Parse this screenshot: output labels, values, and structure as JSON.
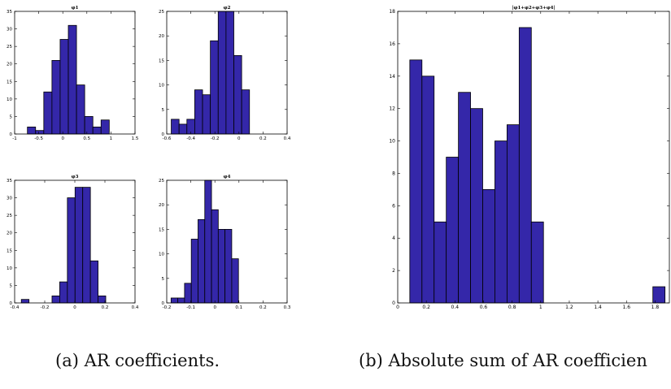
{
  "colors": {
    "bar_fill": "#3427a9",
    "bar_edge": "#000000",
    "axis": "#000000"
  },
  "chart_data": [
    {
      "type": "bar",
      "title": "φ1",
      "xlim": [
        -1,
        1.5
      ],
      "ylim": [
        0,
        35
      ],
      "xticks": [
        -1,
        -0.5,
        0,
        0.5,
        1,
        1.5
      ],
      "yticks": [
        0,
        5,
        10,
        15,
        20,
        25,
        30,
        35
      ],
      "x": [
        -0.65,
        -0.48,
        -0.31,
        -0.14,
        0.03,
        0.2,
        0.37,
        0.54,
        0.71,
        0.88,
        1.05,
        1.22
      ],
      "bin_width": 0.17,
      "values": [
        2,
        1,
        12,
        21,
        27,
        31,
        14,
        5,
        2,
        4,
        0,
        0
      ]
    },
    {
      "type": "bar",
      "title": "φ2",
      "xlim": [
        -0.6,
        0.4
      ],
      "ylim": [
        0,
        25
      ],
      "xticks": [
        -0.6,
        -0.4,
        -0.2,
        0,
        0.2,
        0.4
      ],
      "yticks": [
        0,
        5,
        10,
        15,
        20,
        25
      ],
      "x": [
        -0.53,
        -0.465,
        -0.4,
        -0.335,
        -0.27,
        -0.205,
        -0.14,
        -0.075,
        -0.01,
        0.055,
        0.12,
        0.185,
        0.25,
        0.315
      ],
      "bin_width": 0.065,
      "values": [
        3,
        2,
        3,
        9,
        8,
        19,
        25,
        25,
        16,
        9,
        0,
        0,
        0,
        0
      ]
    },
    {
      "type": "bar",
      "title": "φ3",
      "xlim": [
        -0.4,
        0.4
      ],
      "ylim": [
        0,
        35
      ],
      "xticks": [
        -0.4,
        -0.2,
        0,
        0.2,
        0.4
      ],
      "yticks": [
        0,
        5,
        10,
        15,
        20,
        25,
        30,
        35
      ],
      "x": [
        -0.33,
        -0.279,
        -0.228,
        -0.177,
        -0.126,
        -0.075,
        -0.024,
        0.027,
        0.078,
        0.129,
        0.18,
        0.231,
        0.282,
        0.333
      ],
      "bin_width": 0.051,
      "values": [
        1,
        0,
        0,
        0,
        2,
        6,
        30,
        33,
        33,
        12,
        2,
        0,
        0,
        0
      ]
    },
    {
      "type": "bar",
      "title": "φ4",
      "xlim": [
        -0.2,
        0.3
      ],
      "ylim": [
        0,
        25
      ],
      "xticks": [
        -0.2,
        -0.1,
        0,
        0.1,
        0.2,
        0.3
      ],
      "yticks": [
        0,
        5,
        10,
        15,
        20,
        25
      ],
      "x": [
        -0.168,
        -0.14,
        -0.112,
        -0.084,
        -0.056,
        -0.028,
        0.0,
        0.028,
        0.056,
        0.084,
        0.112,
        0.14,
        0.168,
        0.196
      ],
      "bin_width": 0.028,
      "values": [
        1,
        1,
        4,
        13,
        17,
        25,
        19,
        15,
        15,
        9,
        0,
        0,
        0,
        0
      ]
    },
    {
      "type": "bar",
      "title": "|φ1+φ2+φ3+φ4|",
      "xlim": [
        0,
        1.9
      ],
      "ylim": [
        0,
        18
      ],
      "xticks": [
        0,
        0.2,
        0.4,
        0.6,
        0.8,
        1,
        1.2,
        1.4,
        1.6,
        1.8
      ],
      "yticks": [
        0,
        2,
        4,
        6,
        8,
        10,
        12,
        14,
        16,
        18
      ],
      "x": [
        0.127,
        0.212,
        0.297,
        0.382,
        0.467,
        0.552,
        0.637,
        0.722,
        0.807,
        0.892,
        0.977,
        1.062,
        1.147,
        1.232,
        1.317,
        1.402,
        1.487,
        1.572,
        1.657,
        1.742,
        1.827
      ],
      "bin_width": 0.085,
      "values": [
        15,
        14,
        5,
        9,
        13,
        12,
        7,
        10,
        11,
        17,
        5,
        0,
        0,
        0,
        0,
        0,
        0,
        0,
        0,
        0,
        1
      ]
    }
  ],
  "captions": {
    "a": "(a)  AR coefficients.",
    "b": "(b)  Absolute sum of AR coefficien"
  }
}
